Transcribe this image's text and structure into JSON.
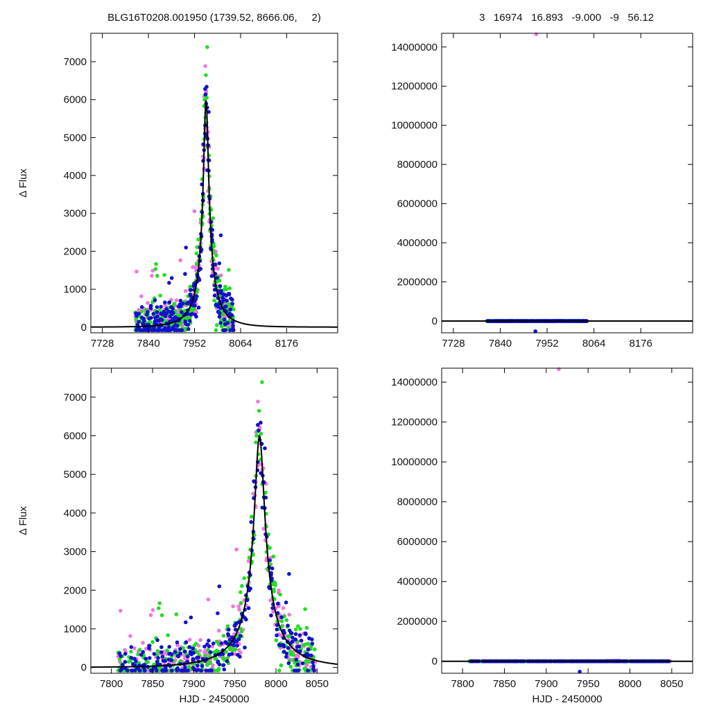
{
  "header": {
    "left": "BLG16T0208.001950 (1739.52, 8666.06,     2)",
    "right": "3   16974   16.893   -9.000   -9   56.12"
  },
  "colors": {
    "series_a": "#ee77dd",
    "series_b": "#1111cc",
    "series_c": "#22dd22",
    "model": "#000000",
    "frame": "#000000"
  },
  "chart_data": [
    {
      "type": "scatter",
      "panel": "top-left",
      "xlabel": "",
      "ylabel": "Δ Flux",
      "xlim": [
        7700,
        8300
      ],
      "ylim": [
        -150,
        7750
      ],
      "xticks": [
        7728,
        7840,
        7952,
        8064,
        8176
      ],
      "yticks": [
        0,
        1000,
        2000,
        3000,
        4000,
        5000,
        6000,
        7000
      ],
      "grid": false,
      "model": {
        "t0": 7980,
        "tE": 62,
        "u0": 0.1,
        "amp": 6000,
        "label": ""
      }
    },
    {
      "type": "scatter",
      "panel": "top-right",
      "xlabel": "",
      "ylabel": "",
      "xlim": [
        7700,
        8300
      ],
      "ylim": [
        -600000,
        14700000
      ],
      "xticks": [
        7728,
        7840,
        7952,
        8064,
        8176
      ],
      "yticks": [
        0,
        2000000,
        4000000,
        6000000,
        8000000,
        10000000,
        12000000,
        14000000
      ],
      "grid": false,
      "outliers": [
        {
          "x": 7926,
          "y": 14650000,
          "series": "a"
        },
        {
          "x": 7924,
          "y": -520000,
          "series": "b"
        }
      ]
    },
    {
      "type": "scatter",
      "panel": "bottom-left",
      "xlabel": "HJD - 2450000",
      "ylabel": "Δ Flux",
      "xlim": [
        7775,
        8075
      ],
      "ylim": [
        -150,
        7750
      ],
      "xticks": [
        7800,
        7850,
        7900,
        7950,
        8000,
        8050
      ],
      "yticks": [
        0,
        1000,
        2000,
        3000,
        4000,
        5000,
        6000,
        7000
      ],
      "grid": false,
      "model": {
        "t0": 7980,
        "tE": 62,
        "u0": 0.1,
        "amp": 6000,
        "label": ""
      }
    },
    {
      "type": "scatter",
      "panel": "bottom-right",
      "xlabel": "HJD - 2450000",
      "ylabel": "",
      "xlim": [
        7775,
        8075
      ],
      "ylim": [
        -600000,
        14700000
      ],
      "xticks": [
        7800,
        7850,
        7900,
        7950,
        8000,
        8050
      ],
      "yticks": [
        0,
        2000000,
        4000000,
        6000000,
        8000000,
        10000000,
        12000000,
        14000000
      ],
      "grid": false,
      "outliers": [
        {
          "x": 7915,
          "y": 14650000,
          "series": "a"
        },
        {
          "x": 7940,
          "y": -520000,
          "series": "b"
        }
      ]
    }
  ],
  "observations": {
    "note_series": [
      "a",
      "b",
      "c"
    ],
    "x_range": [
      7808,
      8048
    ],
    "scatter_seed": 17
  }
}
